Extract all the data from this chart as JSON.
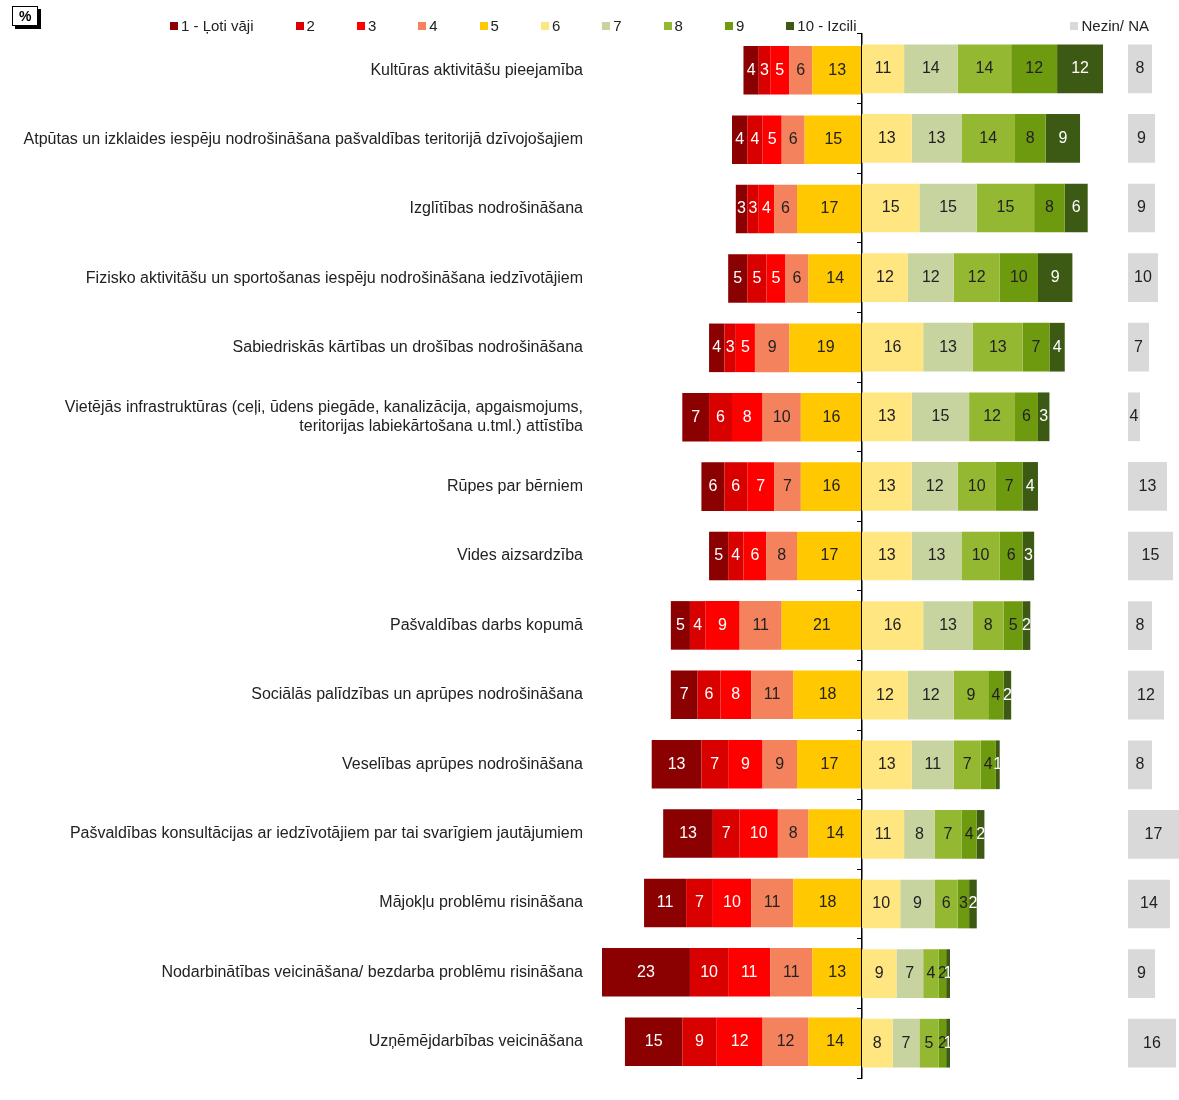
{
  "chart_data": [
    {
      "type": "bar",
      "orientation": "horizontal",
      "stacked": true,
      "data_labels": true,
      "legend": "top",
      "tick_labels": "y",
      "annotations": [
        "%"
      ],
      "categories": [
        "Kultūras aktivitāšu pieejamība",
        "Atpūtas un izklaides iespēju nodrošināšana pašvaldības teritorijā dzīvojošajiem",
        "Izglītības nodrošināšana",
        "Fizisko aktivitāšu un sportošanas iespēju nodrošināšana iedzīvotājiem",
        "Sabiedriskās kārtības un drošības nodrošināšana",
        "Vietējās infrastruktūras (ceļi, ūdens piegāde, kanalizācija, apgaismojums, teritorijas labiekārtošana u.tml.) attīstība",
        "Rūpes par bērniem",
        "Vides aizsardzība",
        "Pašvaldības darbs kopumā",
        "Sociālās palīdzības un aprūpes nodrošināšana",
        "Veselības aprūpes nodrošināšana",
        "Pašvaldības konsultācijas ar iedzīvotājiem par tai svarīgiem jautājumiem",
        "Mājokļu problēmu risināšana",
        "Nodarbinātības veicināšana/ bezdarba problēmu risināšana",
        "Uzņēmējdarbības veicināšana"
      ],
      "xlim": [
        68,
        0
      ],
      "series": [
        {
          "name": "5",
          "color": "#ffc800",
          "values": [
            13,
            15,
            17,
            14,
            19,
            16,
            16,
            17,
            21,
            18,
            17,
            14,
            18,
            13,
            14
          ]
        },
        {
          "name": "4",
          "color": "#f4825c",
          "values": [
            6,
            6,
            6,
            6,
            9,
            10,
            7,
            8,
            11,
            11,
            9,
            8,
            11,
            11,
            12
          ]
        },
        {
          "name": "3",
          "color": "#ff0000",
          "values": [
            5,
            5,
            4,
            5,
            5,
            8,
            7,
            6,
            9,
            8,
            9,
            10,
            10,
            11,
            12
          ]
        },
        {
          "name": "2",
          "color": "#d90000",
          "values": [
            3,
            4,
            3,
            5,
            3,
            6,
            6,
            4,
            4,
            6,
            7,
            7,
            7,
            10,
            9
          ]
        },
        {
          "name": "1 - Ļoti vāji",
          "color": "#8b0000",
          "values": [
            4,
            4,
            3,
            5,
            4,
            7,
            6,
            5,
            5,
            7,
            13,
            13,
            11,
            23,
            15
          ]
        }
      ]
    },
    {
      "type": "bar",
      "orientation": "horizontal",
      "stacked": true,
      "data_labels": true,
      "legend": "top",
      "tick_labels": false,
      "categories": [
        null,
        null,
        null,
        null,
        null,
        null,
        null,
        null,
        null,
        null,
        null,
        null,
        null,
        null,
        null
      ],
      "xlim": [
        0,
        63
      ],
      "series": [
        {
          "name": "6",
          "color": "#ffe680",
          "values": [
            11,
            13,
            15,
            12,
            16,
            13,
            13,
            13,
            16,
            12,
            13,
            11,
            10,
            9,
            8
          ]
        },
        {
          "name": "7",
          "color": "#c8d4a0",
          "values": [
            14,
            13,
            15,
            12,
            13,
            15,
            12,
            13,
            13,
            12,
            11,
            8,
            9,
            7,
            7
          ]
        },
        {
          "name": "8",
          "color": "#94b832",
          "values": [
            14,
            14,
            15,
            12,
            13,
            12,
            10,
            10,
            8,
            9,
            7,
            7,
            6,
            4,
            5
          ]
        },
        {
          "name": "9",
          "color": "#6e9a10",
          "values": [
            12,
            8,
            8,
            10,
            7,
            6,
            7,
            6,
            5,
            4,
            4,
            4,
            3,
            2,
            2
          ]
        },
        {
          "name": "10 - Izcili",
          "color": "#3d5a14",
          "values": [
            12,
            9,
            6,
            9,
            4,
            3,
            4,
            3,
            2,
            2,
            1,
            2,
            2,
            1,
            1
          ]
        }
      ]
    },
    {
      "type": "bar",
      "orientation": "horizontal",
      "data_labels": true,
      "legend": "top",
      "tick_labels": false,
      "categories": [
        null,
        null,
        null,
        null,
        null,
        null,
        null,
        null,
        null,
        null,
        null,
        null,
        null,
        null,
        null
      ],
      "xlim": [
        0,
        17
      ],
      "series": [
        {
          "name": "Nezin/ NA",
          "color": "#d9d9d9",
          "values": [
            8,
            9,
            9,
            10,
            7,
            4,
            13,
            15,
            8,
            12,
            8,
            17,
            14,
            9,
            16
          ]
        }
      ]
    }
  ]
}
